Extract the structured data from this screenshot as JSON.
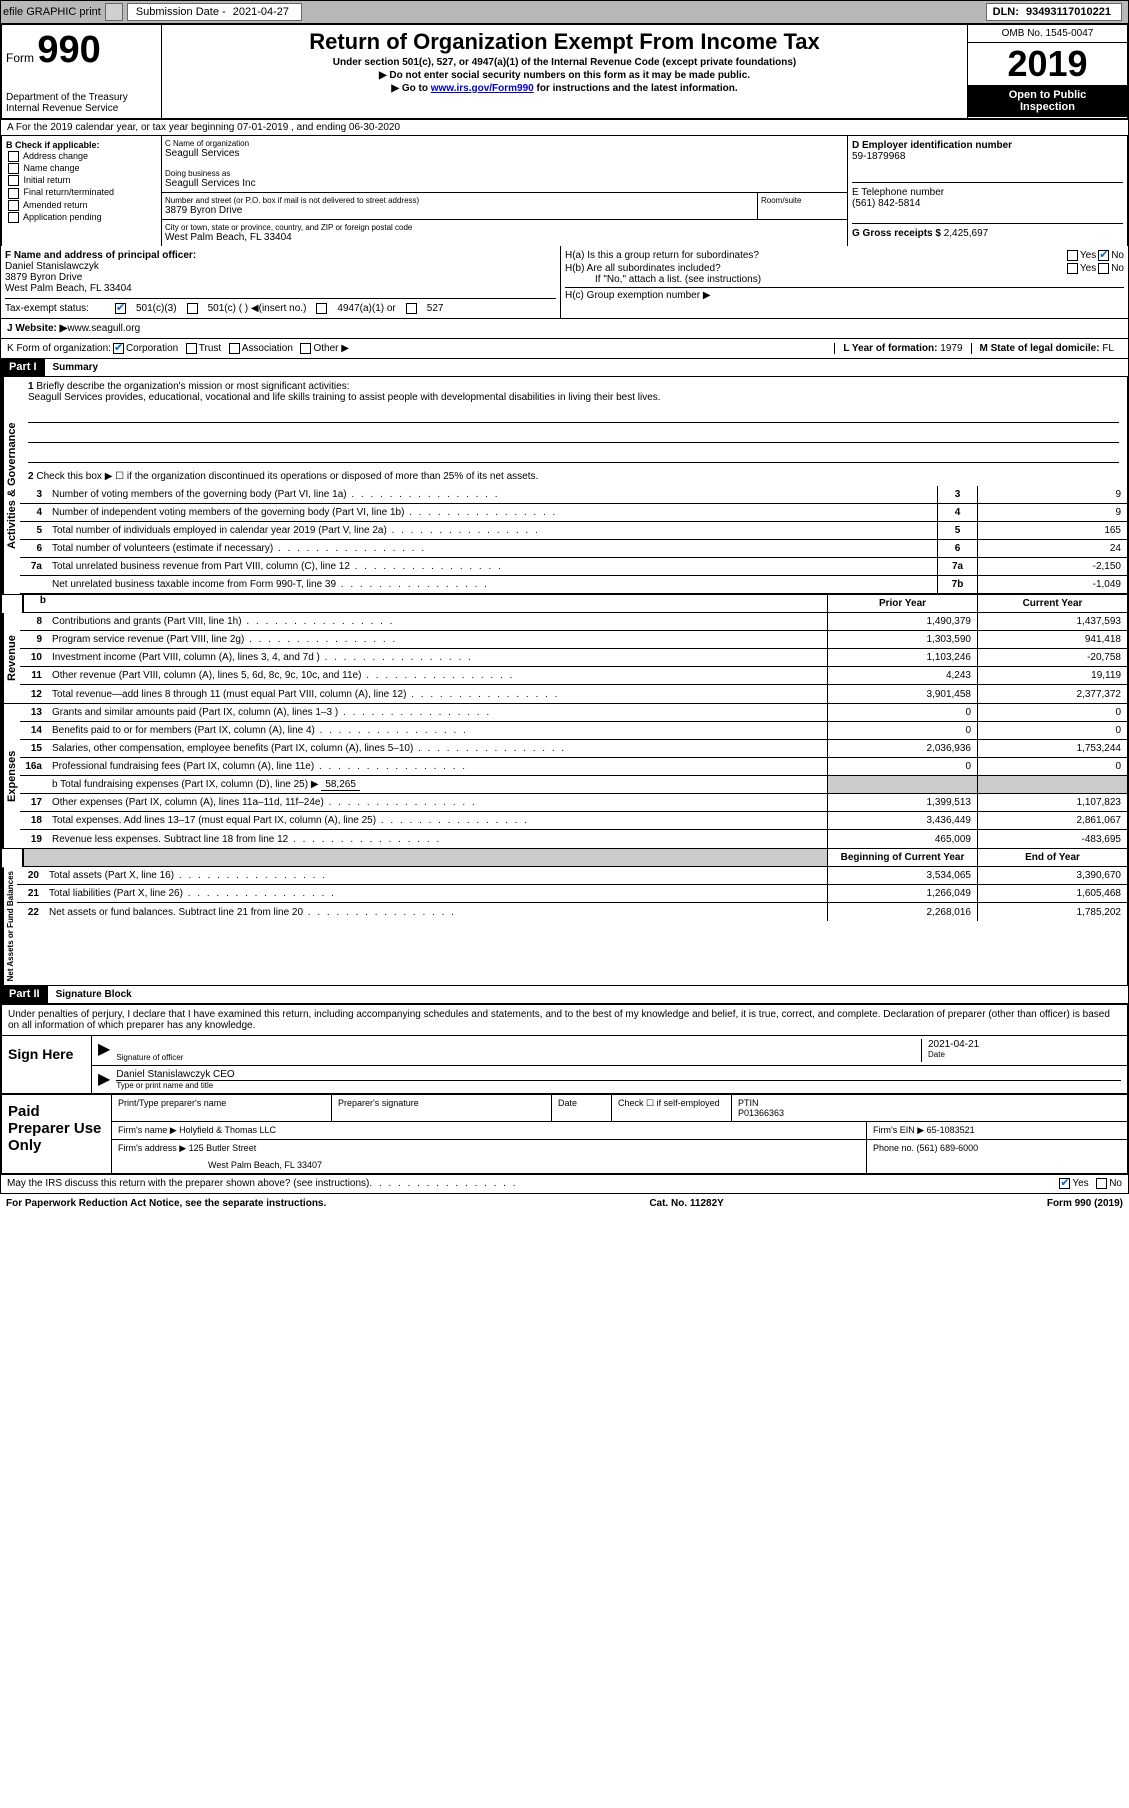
{
  "topbar": {
    "efile": "efile GRAPHIC print",
    "sub_label": "Submission Date - ",
    "sub_date": "2021-04-27",
    "dln_label": "DLN: ",
    "dln": "93493117010221"
  },
  "header": {
    "form_word": "Form",
    "form_num": "990",
    "dept1": "Department of the Treasury",
    "dept2": "Internal Revenue Service",
    "title": "Return of Organization Exempt From Income Tax",
    "subtitle": "Under section 501(c), 527, or 4947(a)(1) of the Internal Revenue Code (except private foundations)",
    "line1": "▶ Do not enter social security numbers on this form as it may be made public.",
    "line2a": "▶ Go to ",
    "line2link": "www.irs.gov/Form990",
    "line2b": " for instructions and the latest information.",
    "omb": "OMB No. 1545-0047",
    "year": "2019",
    "inspect1": "Open to Public",
    "inspect2": "Inspection"
  },
  "rowA": "A For the 2019 calendar year, or tax year beginning 07-01-2019    , and ending 06-30-2020",
  "B": {
    "title": "B Check if applicable:",
    "items": [
      "Address change",
      "Name change",
      "Initial return",
      "Final return/terminated",
      "Amended return",
      "Application pending"
    ]
  },
  "C": {
    "name_label": "C Name of organization",
    "name": "Seagull Services",
    "dba_label": "Doing business as",
    "dba": "Seagull Services Inc",
    "addr_label": "Number and street (or P.O. box if mail is not delivered to street address)",
    "suite_label": "Room/suite",
    "addr": "3879 Byron Drive",
    "city_label": "City or town, state or province, country, and ZIP or foreign postal code",
    "city": "West Palm Beach, FL  33404"
  },
  "D": {
    "ein_label": "D Employer identification number",
    "ein": "59-1879968",
    "phone_label": "E Telephone number",
    "phone": "(561) 842-5814",
    "gross_label": "G Gross receipts $ ",
    "gross": "2,425,697"
  },
  "F": {
    "label": "F Name and address of principal officer:",
    "name": "Daniel Stanislawczyk",
    "addr": "3879 Byron Drive",
    "city": "West Palm Beach, FL  33404"
  },
  "H": {
    "a": "H(a)  Is this a group return for subordinates?",
    "b": "H(b)  Are all subordinates included?",
    "b_note": "If \"No,\" attach a list. (see instructions)",
    "c": "H(c)  Group exemption number ▶",
    "yes": "Yes",
    "no": "No"
  },
  "I": {
    "label": "Tax-exempt status:",
    "opts": [
      "501(c)(3)",
      "501(c) (  ) ◀(insert no.)",
      "4947(a)(1) or",
      "527"
    ]
  },
  "J": {
    "label": "J   Website: ▶  ",
    "url": "www.seagull.org"
  },
  "K": {
    "label": "K Form of organization: ",
    "opts": [
      "Corporation",
      "Trust",
      "Association",
      "Other ▶"
    ],
    "L": "L Year of formation: ",
    "Lval": "1979",
    "M": "M State of legal domicile: ",
    "Mval": "FL"
  },
  "part1": {
    "header": "Part I",
    "title": "Summary",
    "sect_gov": "Activities & Governance",
    "sect_rev": "Revenue",
    "sect_exp": "Expenses",
    "sect_net": "Net Assets or Fund Balances",
    "l1": "Briefly describe the organization's mission or most significant activities:",
    "mission": "Seagull Services provides, educational, vocational and life skills training to assist people with developmental disabilities in living their best lives.",
    "l2": "Check this box ▶ ☐ if the organization discontinued its operations or disposed of more than 25% of its net assets.",
    "rows_gov": [
      {
        "n": "3",
        "d": "Number of voting members of the governing body (Part VI, line 1a)",
        "c": "3",
        "v": "9"
      },
      {
        "n": "4",
        "d": "Number of independent voting members of the governing body (Part VI, line 1b)",
        "c": "4",
        "v": "9"
      },
      {
        "n": "5",
        "d": "Total number of individuals employed in calendar year 2019 (Part V, line 2a)",
        "c": "5",
        "v": "165"
      },
      {
        "n": "6",
        "d": "Total number of volunteers (estimate if necessary)",
        "c": "6",
        "v": "24"
      },
      {
        "n": "7a",
        "d": "Total unrelated business revenue from Part VIII, column (C), line 12",
        "c": "7a",
        "v": "-2,150"
      },
      {
        "n": "",
        "d": "Net unrelated business taxable income from Form 990-T, line 39",
        "c": "7b",
        "v": "-1,049"
      }
    ],
    "prior": "Prior Year",
    "current": "Current Year",
    "rows_rev": [
      {
        "n": "8",
        "d": "Contributions and grants (Part VIII, line 1h)",
        "p": "1,490,379",
        "c": "1,437,593"
      },
      {
        "n": "9",
        "d": "Program service revenue (Part VIII, line 2g)",
        "p": "1,303,590",
        "c": "941,418"
      },
      {
        "n": "10",
        "d": "Investment income (Part VIII, column (A), lines 3, 4, and 7d )",
        "p": "1,103,246",
        "c": "-20,758"
      },
      {
        "n": "11",
        "d": "Other revenue (Part VIII, column (A), lines 5, 6d, 8c, 9c, 10c, and 11e)",
        "p": "4,243",
        "c": "19,119"
      },
      {
        "n": "12",
        "d": "Total revenue—add lines 8 through 11 (must equal Part VIII, column (A), line 12)",
        "p": "3,901,458",
        "c": "2,377,372"
      }
    ],
    "rows_exp": [
      {
        "n": "13",
        "d": "Grants and similar amounts paid (Part IX, column (A), lines 1–3 )",
        "p": "0",
        "c": "0"
      },
      {
        "n": "14",
        "d": "Benefits paid to or for members (Part IX, column (A), line 4)",
        "p": "0",
        "c": "0"
      },
      {
        "n": "15",
        "d": "Salaries, other compensation, employee benefits (Part IX, column (A), lines 5–10)",
        "p": "2,036,936",
        "c": "1,753,244"
      },
      {
        "n": "16a",
        "d": "Professional fundraising fees (Part IX, column (A), line 11e)",
        "p": "0",
        "c": "0"
      }
    ],
    "l16b": "b Total fundraising expenses (Part IX, column (D), line 25) ▶",
    "l16b_val": "58,265",
    "rows_exp2": [
      {
        "n": "17",
        "d": "Other expenses (Part IX, column (A), lines 11a–11d, 11f–24e)",
        "p": "1,399,513",
        "c": "1,107,823"
      },
      {
        "n": "18",
        "d": "Total expenses. Add lines 13–17 (must equal Part IX, column (A), line 25)",
        "p": "3,436,449",
        "c": "2,861,067"
      },
      {
        "n": "19",
        "d": "Revenue less expenses. Subtract line 18 from line 12",
        "p": "465,009",
        "c": "-483,695"
      }
    ],
    "begin": "Beginning of Current Year",
    "end": "End of Year",
    "rows_net": [
      {
        "n": "20",
        "d": "Total assets (Part X, line 16)",
        "p": "3,534,065",
        "c": "3,390,670"
      },
      {
        "n": "21",
        "d": "Total liabilities (Part X, line 26)",
        "p": "1,266,049",
        "c": "1,605,468"
      },
      {
        "n": "22",
        "d": "Net assets or fund balances. Subtract line 21 from line 20",
        "p": "2,268,016",
        "c": "1,785,202"
      }
    ]
  },
  "part2": {
    "header": "Part II",
    "title": "Signature Block",
    "decl": "Under penalties of perjury, I declare that I have examined this return, including accompanying schedules and statements, and to the best of my knowledge and belief, it is true, correct, and complete. Declaration of preparer (other than officer) is based on all information of which preparer has any knowledge.",
    "sign_here": "Sign Here",
    "sig_officer": "Signature of officer",
    "date_label": "Date",
    "date": "2021-04-21",
    "name_title": "Daniel Stanislawczyk  CEO",
    "name_title_label": "Type or print name and title",
    "paid": "Paid Preparer Use Only",
    "prep_name_label": "Print/Type preparer's name",
    "prep_sig_label": "Preparer's signature",
    "check_self": "Check ☐ if self-employed",
    "ptin_label": "PTIN",
    "ptin": "P01366363",
    "firm_name_label": "Firm's name    ▶ ",
    "firm_name": "Holyfield & Thomas LLC",
    "firm_ein_label": "Firm's EIN ▶ ",
    "firm_ein": "65-1083521",
    "firm_addr_label": "Firm's address ▶ ",
    "firm_addr1": "125 Butler Street",
    "firm_addr2": "West Palm Beach, FL  33407",
    "phone_label": "Phone no. ",
    "phone": "(561) 689-6000",
    "discuss": "May the IRS discuss this return with the preparer shown above? (see instructions)"
  },
  "footer": {
    "paperwork": "For Paperwork Reduction Act Notice, see the separate instructions.",
    "cat": "Cat. No. 11282Y",
    "form": "Form 990 (2019)"
  }
}
